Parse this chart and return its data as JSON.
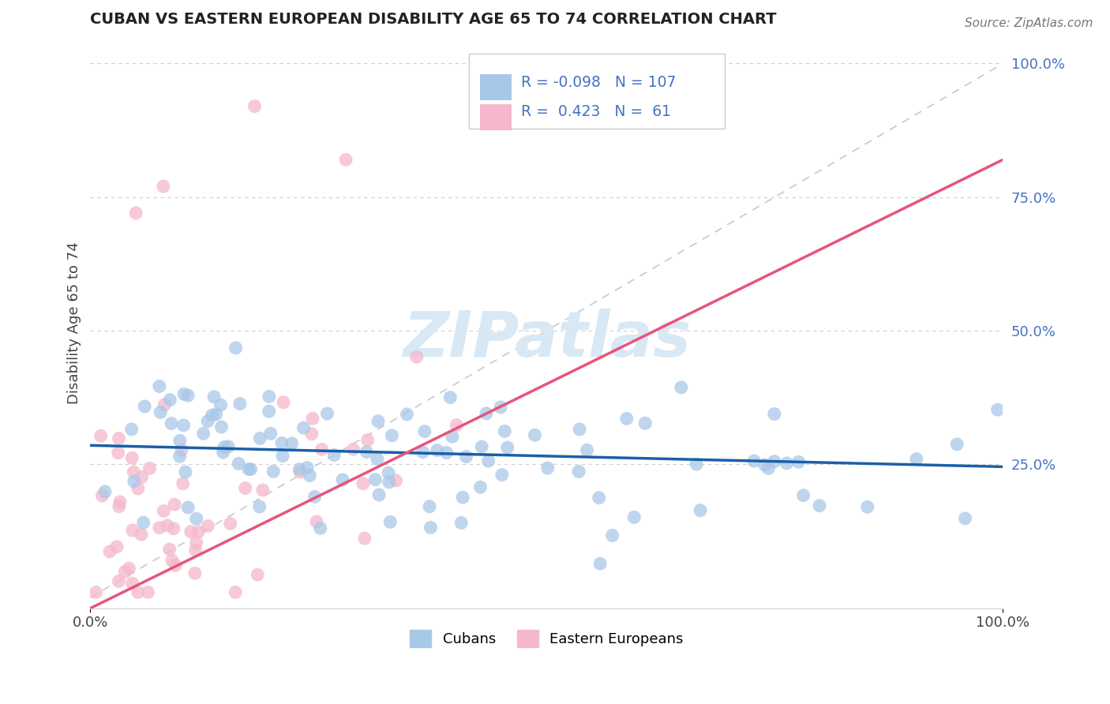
{
  "title": "CUBAN VS EASTERN EUROPEAN DISABILITY AGE 65 TO 74 CORRELATION CHART",
  "source_text": "Source: ZipAtlas.com",
  "ylabel": "Disability Age 65 to 74",
  "xticklabels": [
    "0.0%",
    "100.0%"
  ],
  "yticklabels": [
    "25.0%",
    "50.0%",
    "75.0%",
    "100.0%"
  ],
  "xlim": [
    0.0,
    1.0
  ],
  "ylim": [
    -0.02,
    1.05
  ],
  "ytick_positions": [
    0.25,
    0.5,
    0.75,
    1.0
  ],
  "blue_R": -0.098,
  "blue_N": 107,
  "pink_R": 0.423,
  "pink_N": 61,
  "blue_color": "#a8c8e8",
  "pink_color": "#f5b8cb",
  "blue_line_color": "#1a5fa8",
  "pink_line_color": "#e8547a",
  "ref_line_color": "#c8c8c8",
  "legend_label_blue": "Cubans",
  "legend_label_pink": "Eastern Europeans",
  "title_color": "#222222",
  "axis_label_color": "#444444",
  "tick_color": "#444444",
  "grid_color": "#d0d0d0",
  "right_tick_color": "#4472c4",
  "watermark_color": "#d8e8f4",
  "blue_line_y0": 0.285,
  "blue_line_y1": 0.245,
  "pink_line_y0": -0.02,
  "pink_line_y1": 0.82
}
